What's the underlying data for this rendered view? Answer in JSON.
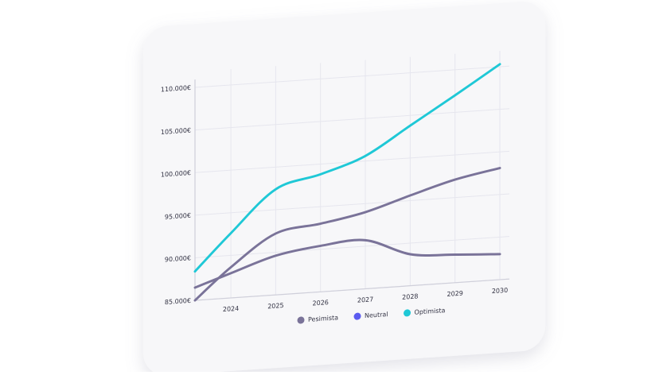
{
  "chart_data": {
    "type": "line",
    "x": [
      2023.2,
      2024,
      2025,
      2026,
      2027,
      2028,
      2029,
      2030
    ],
    "xlim": [
      2023.2,
      2030
    ],
    "xticks": [
      2024,
      2025,
      2026,
      2027,
      2028,
      2029,
      2030
    ],
    "ylim": [
      85000,
      110000
    ],
    "yticks": [
      {
        "value": 85000,
        "label": "85.000€"
      },
      {
        "value": 90000,
        "label": "90.000€"
      },
      {
        "value": 95000,
        "label": "95.000€"
      },
      {
        "value": 100000,
        "label": "100.000€"
      },
      {
        "value": 105000,
        "label": "105.000€"
      },
      {
        "value": 110000,
        "label": "110.000€"
      }
    ],
    "grid": true,
    "series": [
      {
        "name": "Pesimista",
        "color": "#7a7399",
        "marker_color": "#7a7399",
        "values": [
          86500,
          87900,
          89600,
          90400,
          90700,
          88700,
          88300,
          88000
        ]
      },
      {
        "name": "Neutral",
        "color": "#7a7399",
        "marker_color": "#5b5bf0",
        "values": [
          85000,
          88600,
          92200,
          93000,
          94000,
          95600,
          97100,
          98100
        ]
      },
      {
        "name": "Optimista",
        "color": "#1fc8d6",
        "marker_color": "#1fc8d6",
        "values": [
          88400,
          92600,
          97400,
          98800,
          100600,
          103800,
          107000,
          110300
        ]
      }
    ]
  }
}
